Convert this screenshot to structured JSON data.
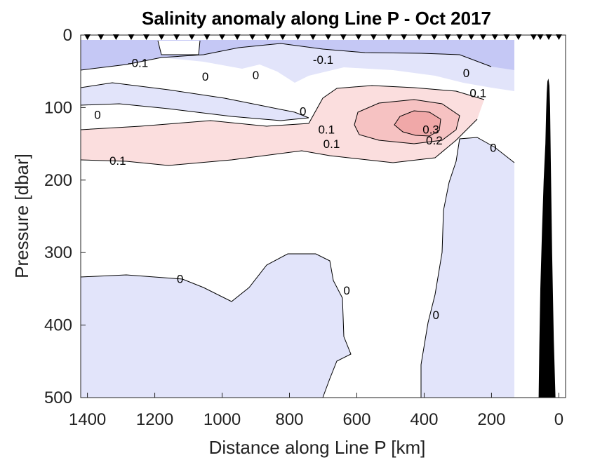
{
  "chart_data": {
    "type": "contour",
    "title": "Salinity anomaly along Line P - Oct 2017",
    "xlabel": "Distance along Line P [km]",
    "ylabel": "Pressure [dbar]",
    "xlim": [
      1420,
      -20
    ],
    "ylim": [
      500,
      0
    ],
    "x_reversed": true,
    "y_reversed": true,
    "xticks": [
      "1400",
      "1200",
      "1000",
      "800",
      "600",
      "400",
      "200",
      "0"
    ],
    "xtick_values": [
      1400,
      1200,
      1000,
      800,
      600,
      400,
      200,
      0
    ],
    "yticks": [
      "0",
      "100",
      "200",
      "300",
      "400",
      "500"
    ],
    "ytick_values": [
      0,
      100,
      200,
      300,
      400,
      500
    ],
    "colors": {
      "negative_strong": "#c5c8f5",
      "negative_weak": "#e2e4fa",
      "positive_weak": "#fbdede",
      "positive_mid": "#f6c2c2",
      "positive_strong": "#f0a8a8",
      "bathymetry": "#000000"
    },
    "contour_labels": [
      {
        "text": "-0.1",
        "x": 1250,
        "y": 38
      },
      {
        "text": "-0.1",
        "x": 700,
        "y": 34
      },
      {
        "text": "0",
        "x": 1050,
        "y": 57
      },
      {
        "text": "0",
        "x": 900,
        "y": 55
      },
      {
        "text": "0",
        "x": 275,
        "y": 52
      },
      {
        "text": "0.1",
        "x": 240,
        "y": 80
      },
      {
        "text": "0",
        "x": 1370,
        "y": 110
      },
      {
        "text": "0",
        "x": 760,
        "y": 105
      },
      {
        "text": "0.1",
        "x": 690,
        "y": 130
      },
      {
        "text": "0.1",
        "x": 675,
        "y": 150
      },
      {
        "text": "0.3",
        "x": 380,
        "y": 130
      },
      {
        "text": "0.2",
        "x": 370,
        "y": 145
      },
      {
        "text": "0",
        "x": 195,
        "y": 155
      },
      {
        "text": "0.1",
        "x": 1310,
        "y": 173
      },
      {
        "text": "0",
        "x": 1125,
        "y": 336
      },
      {
        "text": "0",
        "x": 630,
        "y": 352
      },
      {
        "text": "0",
        "x": 365,
        "y": 386
      }
    ],
    "station_markers_x": [
      1400,
      1360,
      1315,
      1270,
      1225,
      1180,
      1135,
      1090,
      1045,
      1000,
      955,
      910,
      865,
      820,
      775,
      730,
      685,
      640,
      595,
      550,
      505,
      460,
      415,
      370,
      330,
      295,
      260,
      225,
      190,
      155,
      120,
      75,
      55,
      30,
      0
    ],
    "bathymetry": [
      [
        60,
        500
      ],
      [
        58,
        430
      ],
      [
        55,
        350
      ],
      [
        50,
        270
      ],
      [
        45,
        200
      ],
      [
        40,
        150
      ],
      [
        38,
        110
      ],
      [
        36,
        80
      ],
      [
        34,
        64
      ],
      [
        31,
        60
      ],
      [
        28,
        70
      ],
      [
        26,
        100
      ],
      [
        24,
        170
      ],
      [
        20,
        300
      ],
      [
        15,
        420
      ],
      [
        10,
        500
      ]
    ],
    "data_edge_x": 125
  }
}
